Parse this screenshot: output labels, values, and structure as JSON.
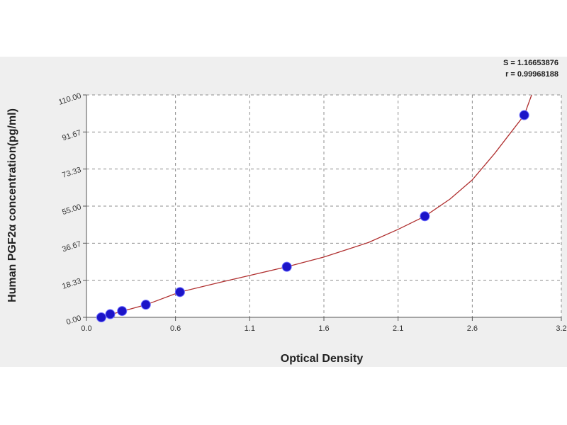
{
  "chart_data": {
    "type": "scatter",
    "xlabel": "Optical Density",
    "ylabel": "Human PGF2α concentration(pg/ml)",
    "xlim": [
      0.0,
      3.2
    ],
    "ylim": [
      0.0,
      110.0
    ],
    "x_ticks": [
      "0.0",
      "0.6",
      "1.1",
      "1.6",
      "2.1",
      "2.6",
      "3.2"
    ],
    "x_tick_values": [
      0.0,
      0.6,
      1.1,
      1.6,
      2.1,
      2.6,
      3.2
    ],
    "y_ticks": [
      "0.00",
      "18.33",
      "36.67",
      "55.00",
      "73.33",
      "91.67",
      "110.00"
    ],
    "y_tick_values": [
      0.0,
      18.33,
      36.67,
      55.0,
      73.33,
      91.67,
      110.0
    ],
    "grid": true,
    "stats": [
      "S = 1.16653876",
      "r = 0.99968188"
    ],
    "points": {
      "x": [
        0.1,
        0.16,
        0.24,
        0.4,
        0.63,
        1.35,
        2.28,
        2.95
      ],
      "y": [
        0.0,
        1.56,
        3.12,
        6.25,
        12.5,
        25.0,
        50.0,
        100.0
      ]
    },
    "fit_curve": {
      "x": [
        0.05,
        0.1,
        0.2,
        0.4,
        0.63,
        0.9,
        1.1,
        1.35,
        1.6,
        1.9,
        2.1,
        2.28,
        2.45,
        2.6,
        2.75,
        2.85,
        2.95,
        3.0
      ],
      "y": [
        -1.0,
        0.0,
        2.2,
        6.2,
        12.5,
        17.3,
        20.7,
        25.0,
        29.8,
        37.0,
        43.5,
        50.0,
        58.5,
        68.0,
        81.0,
        90.5,
        100.0,
        110.0
      ]
    },
    "colors": {
      "point": "#1c14c8",
      "curve": "#b03030",
      "grid": "#8c8c8c"
    }
  }
}
